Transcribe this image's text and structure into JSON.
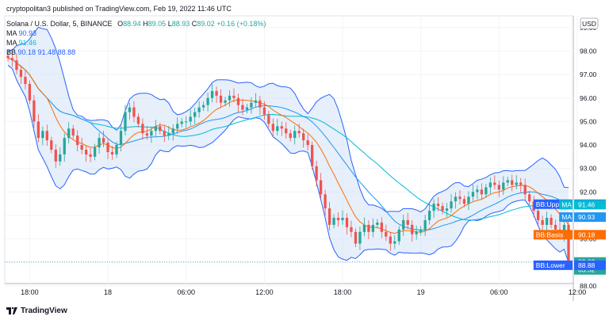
{
  "header": {
    "published": "cryptopolitan3 published on TradingView.com, Feb 19, 2022 11:46 UTC",
    "symbol_line": "Solana / U.S. Dollar, 5, BINANCE",
    "ohlc": {
      "o_label": "O",
      "o": "88.94",
      "h_label": "H",
      "h": "89.05",
      "l_label": "L",
      "l": "88.93",
      "c_label": "C",
      "c": "89.02",
      "change": "+0.16 (+0.18%)"
    },
    "ma1": {
      "label": "MA",
      "value": "90.93"
    },
    "ma2": {
      "label": "MA",
      "value": "91.46"
    },
    "bb": {
      "label": "BB",
      "values": "90.18  91.48  88.88"
    }
  },
  "footer": {
    "brand": "TradingView"
  },
  "colors": {
    "up": "#26a69a",
    "down": "#ef5350",
    "bb_band": "#2962ff",
    "bb_fill": "#d6e4f7",
    "bb_basis": "#ff6d00",
    "ma_fast": "#2196f3",
    "ma_slow": "#00bcd4"
  },
  "chart_data": {
    "type": "candlestick",
    "currency_label": "USD",
    "ylim": [
      88.1,
      99.5
    ],
    "y_ticks": [
      "99.00",
      "98.00",
      "97.00",
      "96.00",
      "95.00",
      "94.00",
      "93.00",
      "92.00",
      "91.00",
      "90.00",
      "89.00",
      "88.00"
    ],
    "x_ticks": [
      {
        "label": "18:00",
        "idx": 5
      },
      {
        "label": "18",
        "idx": 23
      },
      {
        "label": "06:00",
        "idx": 41
      },
      {
        "label": "12:00",
        "idx": 59
      },
      {
        "label": "18:00",
        "idx": 77
      },
      {
        "label": "19",
        "idx": 95
      },
      {
        "label": "06:00",
        "idx": 113
      },
      {
        "label": "12:00",
        "idx": 131
      }
    ],
    "closes": [
      97.7,
      97.6,
      97.2,
      96.9,
      96.6,
      95.9,
      95.0,
      94.3,
      94.6,
      94.2,
      93.8,
      93.3,
      93.6,
      94.3,
      94.7,
      94.4,
      94.0,
      93.8,
      93.6,
      93.5,
      93.9,
      94.3,
      94.1,
      93.7,
      93.6,
      94.0,
      94.6,
      95.4,
      95.6,
      95.2,
      94.9,
      94.5,
      94.4,
      94.6,
      94.8,
      94.6,
      94.4,
      94.5,
      94.7,
      94.9,
      95.0,
      95.0,
      95.2,
      95.4,
      95.6,
      95.7,
      96.0,
      96.3,
      96.1,
      95.8,
      95.9,
      96.1,
      96.0,
      95.7,
      95.5,
      95.6,
      95.8,
      95.9,
      95.6,
      95.3,
      94.9,
      94.6,
      94.8,
      94.7,
      94.5,
      94.3,
      94.6,
      94.5,
      94.2,
      94.0,
      93.1,
      92.5,
      91.9,
      91.3,
      90.6,
      90.9,
      90.8,
      90.9,
      90.5,
      90.3,
      89.8,
      90.3,
      90.6,
      90.3,
      90.6,
      90.7,
      90.3,
      90.1,
      89.8,
      89.9,
      90.4,
      90.8,
      90.6,
      90.2,
      90.3,
      90.4,
      90.8,
      91.2,
      91.5,
      91.4,
      91.2,
      91.3,
      91.6,
      91.8,
      91.7,
      91.5,
      91.8,
      92.0,
      92.1,
      91.9,
      92.2,
      92.4,
      92.3,
      92.1,
      92.4,
      92.5,
      92.3,
      92.4,
      92.3,
      91.9,
      91.6,
      91.2,
      90.8,
      90.6,
      90.9,
      90.6,
      90.4,
      90.2,
      90.6,
      89.0
    ],
    "ma_fast_last": 90.93,
    "ma_slow_last": 91.46,
    "bb_last": {
      "basis": 90.18,
      "upper": 91.48,
      "lower": 88.88
    },
    "price_labels": [
      {
        "text": "BB:Upper",
        "value": "91.48",
        "y": 91.48,
        "color": "#2962ff",
        "label_color": "#2962ff"
      },
      {
        "text": "MA",
        "value": "91.46",
        "y": 91.46,
        "color": "#00bcd4",
        "label_color": "#00bcd4"
      },
      {
        "text": "MA",
        "value": "90.93",
        "y": 90.93,
        "color": "#2196f3",
        "label_color": "#2196f3"
      },
      {
        "text": "BB:Basis",
        "value": "90.18",
        "y": 90.18,
        "color": "#ff6d00",
        "label_color": "#ff6d00"
      },
      {
        "text": "",
        "value": "89.02",
        "y": 89.02,
        "color": "#26a69a",
        "label_color": "#26a69a",
        "sub": "03:52"
      },
      {
        "text": "BB:Lower",
        "value": "88.88",
        "y": 88.88,
        "color": "#2962ff",
        "label_color": "#2962ff"
      }
    ]
  }
}
